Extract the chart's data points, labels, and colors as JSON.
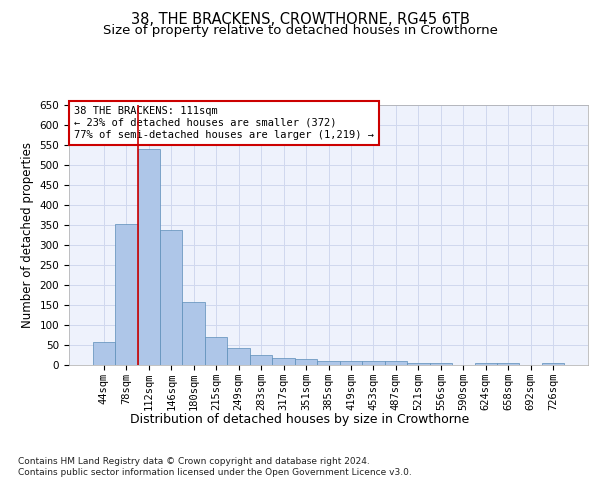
{
  "title": "38, THE BRACKENS, CROWTHORNE, RG45 6TB",
  "subtitle": "Size of property relative to detached houses in Crowthorne",
  "xlabel_dist": "Distribution of detached houses by size in Crowthorne",
  "ylabel": "Number of detached properties",
  "categories": [
    "44sqm",
    "78sqm",
    "112sqm",
    "146sqm",
    "180sqm",
    "215sqm",
    "249sqm",
    "283sqm",
    "317sqm",
    "351sqm",
    "385sqm",
    "419sqm",
    "453sqm",
    "487sqm",
    "521sqm",
    "556sqm",
    "590sqm",
    "624sqm",
    "658sqm",
    "692sqm",
    "726sqm"
  ],
  "values": [
    57,
    353,
    540,
    337,
    157,
    70,
    42,
    24,
    18,
    15,
    10,
    10,
    9,
    10,
    5,
    4,
    0,
    5,
    5,
    0,
    5
  ],
  "bar_color": "#aec6e8",
  "bar_edgecolor": "#5b8db8",
  "grid_color": "#d0d8ee",
  "bg_color": "#eef2fc",
  "vline_color": "#cc0000",
  "annotation_text": "38 THE BRACKENS: 111sqm\n← 23% of detached houses are smaller (372)\n77% of semi-detached houses are larger (1,219) →",
  "annotation_box_color": "#cc0000",
  "ylim": [
    0,
    650
  ],
  "yticks": [
    0,
    50,
    100,
    150,
    200,
    250,
    300,
    350,
    400,
    450,
    500,
    550,
    600,
    650
  ],
  "footnote": "Contains HM Land Registry data © Crown copyright and database right 2024.\nContains public sector information licensed under the Open Government Licence v3.0.",
  "title_fontsize": 10.5,
  "subtitle_fontsize": 9.5,
  "ylabel_fontsize": 8.5,
  "tick_fontsize": 7.5,
  "annot_fontsize": 7.5,
  "footnote_fontsize": 6.5,
  "xlabel_dist_fontsize": 9.0
}
